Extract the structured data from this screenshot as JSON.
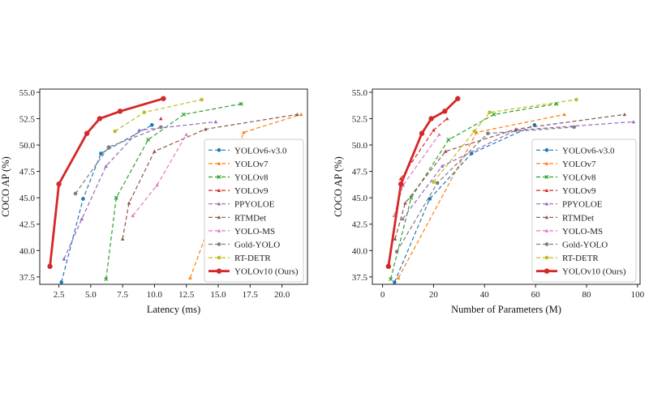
{
  "chart_data": [
    {
      "type": "line",
      "xlabel": "Latency (ms)",
      "ylabel": "COCO AP (%)",
      "xlim": [
        1,
        22
      ],
      "ylim": [
        36.8,
        55.3
      ],
      "xticks": [
        2.5,
        5.0,
        7.5,
        10.0,
        12.5,
        15.0,
        17.5,
        20.0
      ],
      "xtick_labels": [
        "2.5",
        "5.0",
        "7.5",
        "10.0",
        "12.5",
        "15.0",
        "17.5",
        "20.0"
      ],
      "yticks": [
        37.5,
        40.0,
        42.5,
        45.0,
        47.5,
        50.0,
        52.5,
        55.0
      ],
      "ytick_labels": [
        "37.5",
        "40.0",
        "42.5",
        "45.0",
        "47.5",
        "50.0",
        "52.5",
        "55.0"
      ],
      "legend": "right",
      "series": [
        {
          "name": "YOLOv6-v3.0",
          "color": "#1f77b4",
          "marker": "dot",
          "x": [
            2.7,
            4.4,
            5.8,
            9.8
          ],
          "y": [
            37.0,
            44.9,
            49.2,
            51.9
          ]
        },
        {
          "name": "YOLOv7",
          "color": "#ff7f0e",
          "marker": "tri",
          "x": [
            12.8,
            17.0,
            21.5
          ],
          "y": [
            37.4,
            51.2,
            52.9
          ]
        },
        {
          "name": "YOLOv8",
          "color": "#2ca02c",
          "marker": "x",
          "x": [
            6.2,
            7.0,
            9.5,
            12.3,
            16.8
          ],
          "y": [
            37.3,
            45.0,
            50.5,
            52.9,
            53.9
          ]
        },
        {
          "name": "YOLOv9",
          "color": "#d62728",
          "marker": "tri",
          "x": [
            10.5
          ],
          "y": [
            52.5
          ]
        },
        {
          "name": "PPYOLOE",
          "color": "#9467bd",
          "marker": "tri",
          "x": [
            2.9,
            4.3,
            6.2,
            8.8,
            14.8
          ],
          "y": [
            39.2,
            43.0,
            48.0,
            51.4,
            52.2
          ]
        },
        {
          "name": "RTMDet",
          "color": "#8c564b",
          "marker": "tri",
          "x": [
            7.5,
            8.0,
            10.0,
            14.0,
            21.2
          ],
          "y": [
            41.1,
            44.5,
            49.4,
            51.5,
            52.9
          ]
        },
        {
          "name": "YOLO-MS",
          "color": "#e377c2",
          "marker": "tri",
          "x": [
            8.3,
            10.2,
            12.5
          ],
          "y": [
            43.3,
            46.2,
            51.0
          ]
        },
        {
          "name": "Gold-YOLO",
          "color": "#7f7f7f",
          "marker": "dot",
          "x": [
            3.8,
            6.4,
            10.5
          ],
          "y": [
            45.4,
            49.8,
            51.7
          ]
        },
        {
          "name": "RT-DETR",
          "color": "#bcbd22",
          "marker": "dot",
          "x": [
            6.9,
            9.2,
            13.7
          ],
          "y": [
            51.3,
            53.1,
            54.3
          ]
        },
        {
          "name": "YOLOv10 (Ours)",
          "color": "#d62728",
          "marker": "dot",
          "bold": true,
          "x": [
            1.8,
            2.5,
            4.7,
            5.7,
            7.3,
            10.7
          ],
          "y": [
            38.5,
            46.3,
            51.1,
            52.5,
            53.2,
            54.4
          ]
        }
      ]
    },
    {
      "type": "line",
      "xlabel": "Number of Parameters (M)",
      "ylabel": "COCO AP (%)",
      "xlim": [
        -4,
        101
      ],
      "ylim": [
        36.8,
        55.3
      ],
      "xticks": [
        0,
        20,
        40,
        60,
        80,
        100
      ],
      "xtick_labels": [
        "0",
        "20",
        "40",
        "60",
        "80",
        "100"
      ],
      "yticks": [
        37.5,
        40.0,
        42.5,
        45.0,
        47.5,
        50.0,
        52.5,
        55.0
      ],
      "ytick_labels": [
        "37.5",
        "40.0",
        "42.5",
        "45.0",
        "47.5",
        "50.0",
        "52.5",
        "55.0"
      ],
      "legend": "right",
      "series": [
        {
          "name": "YOLOv6-v3.0",
          "color": "#1f77b4",
          "marker": "dot",
          "x": [
            4.7,
            18.5,
            34.9,
            59.6
          ],
          "y": [
            37.0,
            44.9,
            49.2,
            51.9
          ]
        },
        {
          "name": "YOLOv7",
          "color": "#ff7f0e",
          "marker": "tri",
          "x": [
            6.2,
            36.9,
            71.3
          ],
          "y": [
            37.4,
            51.2,
            52.9
          ]
        },
        {
          "name": "YOLOv8",
          "color": "#2ca02c",
          "marker": "x",
          "x": [
            3.2,
            11.2,
            25.9,
            43.7,
            68.2
          ],
          "y": [
            37.3,
            45.0,
            50.5,
            52.9,
            53.9
          ]
        },
        {
          "name": "YOLOv9",
          "color": "#d62728",
          "marker": "tri",
          "x": [
            7.1,
            20.0,
            25.3
          ],
          "y": [
            46.8,
            51.4,
            52.5
          ]
        },
        {
          "name": "PPYOLOE",
          "color": "#9467bd",
          "marker": "tri",
          "x": [
            7.9,
            23.4,
            52.2,
            98.4
          ],
          "y": [
            43.0,
            48.0,
            51.4,
            52.2
          ]
        },
        {
          "name": "RTMDet",
          "color": "#8c564b",
          "marker": "tri",
          "x": [
            4.9,
            8.9,
            24.7,
            52.3,
            94.9
          ],
          "y": [
            41.1,
            44.5,
            49.4,
            51.5,
            52.9
          ]
        },
        {
          "name": "YOLO-MS",
          "color": "#e377c2",
          "marker": "tri",
          "x": [
            4.5,
            8.1,
            22.2
          ],
          "y": [
            43.3,
            46.2,
            51.0
          ]
        },
        {
          "name": "Gold-YOLO",
          "color": "#7f7f7f",
          "marker": "dot",
          "x": [
            5.6,
            21.5,
            41.3,
            75.1
          ],
          "y": [
            39.9,
            46.4,
            51.1,
            51.7
          ]
        },
        {
          "name": "RT-DETR",
          "color": "#bcbd22",
          "marker": "dot",
          "x": [
            20.0,
            36.0,
            42.0,
            76.0
          ],
          "y": [
            46.5,
            51.3,
            53.1,
            54.3
          ]
        },
        {
          "name": "YOLOv10 (Ours)",
          "color": "#d62728",
          "marker": "dot",
          "bold": true,
          "x": [
            2.3,
            7.2,
            15.4,
            19.1,
            24.4,
            29.5
          ],
          "y": [
            38.5,
            46.3,
            51.1,
            52.5,
            53.2,
            54.4
          ]
        }
      ]
    }
  ]
}
